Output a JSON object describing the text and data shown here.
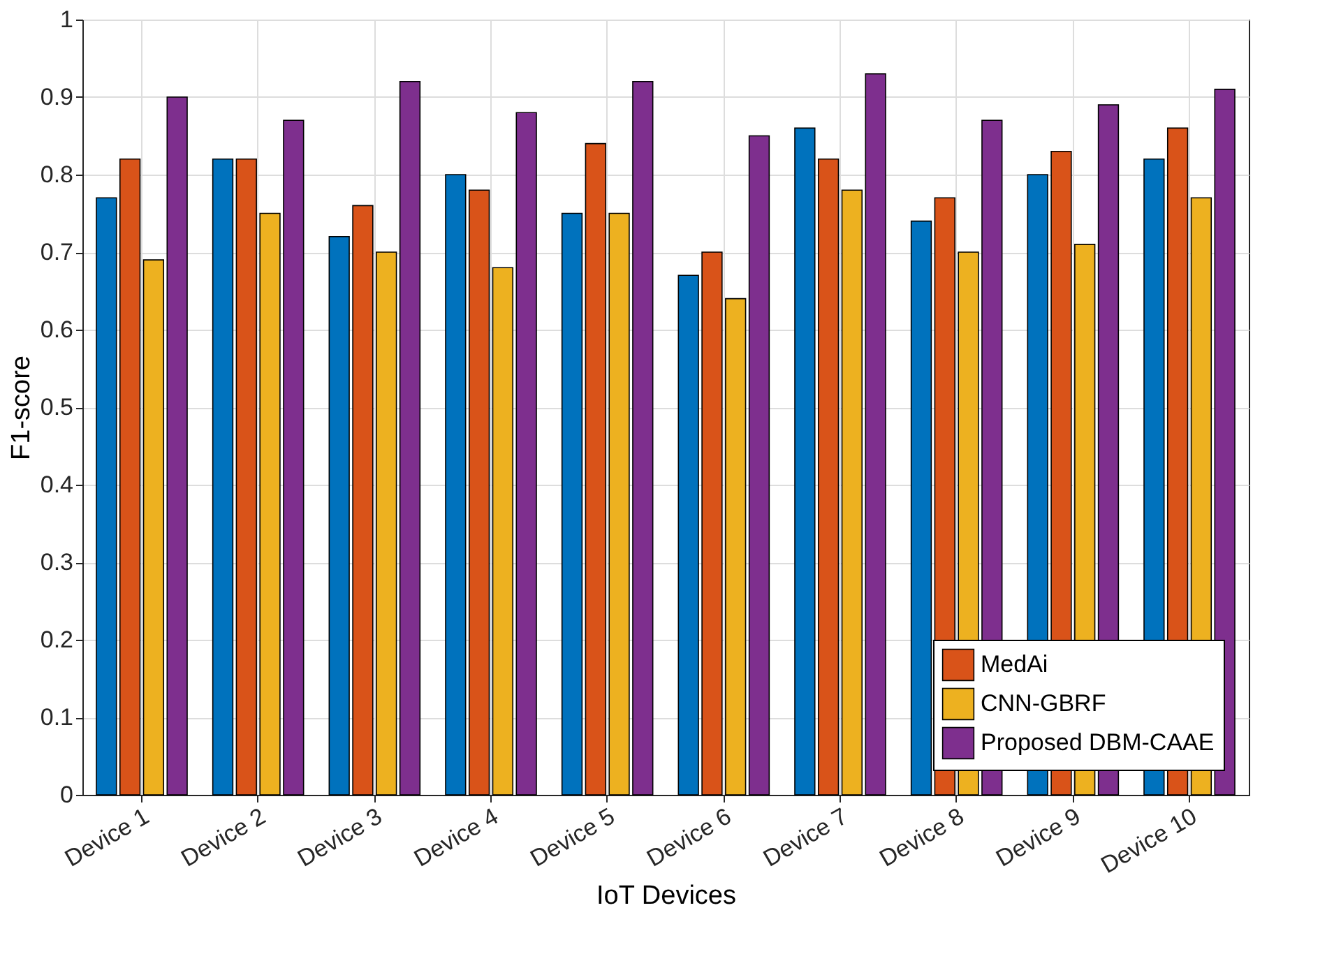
{
  "chart_data": {
    "type": "bar",
    "xlabel": "IoT Devices",
    "ylabel": "F1-score",
    "categories": [
      "Device 1",
      "Device 2",
      "Device 3",
      "Device 4",
      "Device 5",
      "Device 6",
      "Device 7",
      "Device 8",
      "Device 9",
      "Device 10"
    ],
    "series": [
      {
        "color": "#0072bd",
        "values": [
          0.77,
          0.82,
          0.72,
          0.8,
          0.75,
          0.67,
          0.86,
          0.74,
          0.8,
          0.82
        ]
      },
      {
        "name": "MedAi",
        "color": "#d95319",
        "values": [
          0.82,
          0.82,
          0.76,
          0.78,
          0.84,
          0.7,
          0.82,
          0.77,
          0.83,
          0.86
        ]
      },
      {
        "name": "CNN-GBRF",
        "color": "#edb120",
        "values": [
          0.69,
          0.75,
          0.7,
          0.68,
          0.75,
          0.64,
          0.78,
          0.7,
          0.71,
          0.77
        ]
      },
      {
        "name": "Proposed DBM-CAAE",
        "color": "#7e2f8e",
        "values": [
          0.9,
          0.87,
          0.92,
          0.88,
          0.92,
          0.85,
          0.93,
          0.87,
          0.89,
          0.91
        ]
      }
    ],
    "ylim": [
      0,
      1
    ],
    "yticks": [
      0,
      0.1,
      0.2,
      0.3,
      0.4,
      0.5,
      0.6,
      0.7,
      0.8,
      0.9,
      1
    ],
    "grid": true,
    "legend": "bottom right"
  }
}
